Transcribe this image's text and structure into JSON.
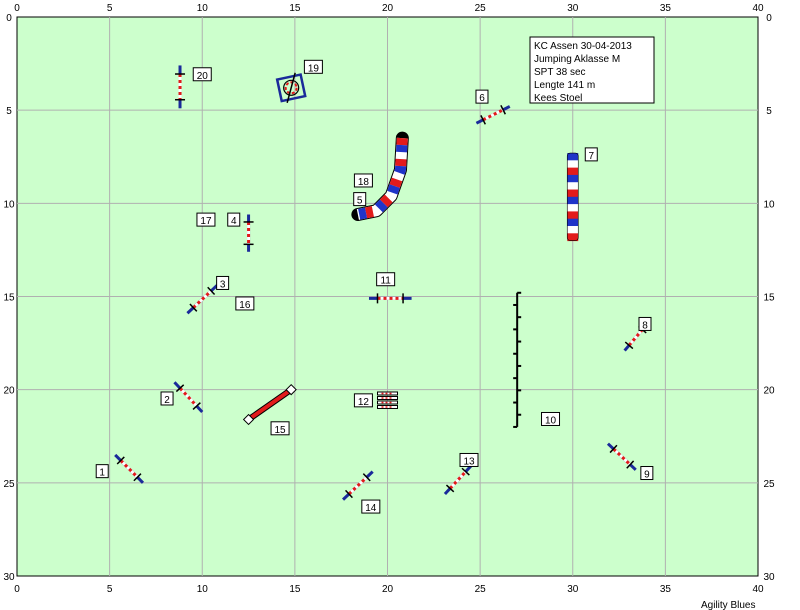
{
  "info_box": {
    "lines": [
      "KC Assen 30-04-2013",
      "Jumping Aklasse M",
      "SPT 38 sec",
      "Lengte 141 m",
      "Kees Stoel"
    ]
  },
  "footer": {
    "brand": "Agility Blues"
  },
  "axes": {
    "x_ticks": [
      0,
      5,
      10,
      15,
      20,
      25,
      30,
      35,
      40
    ],
    "y_ticks": [
      0,
      5,
      10,
      15,
      20,
      25,
      30
    ],
    "xlim": [
      0,
      40
    ],
    "ylim": [
      0,
      30
    ],
    "grid": true
  },
  "colors": {
    "field": "#ccffcc",
    "grid": "#b0b0b0",
    "pole_blue": "#1a2a9a",
    "tunnel_red": "#e21b1b",
    "tunnel_blue": "#1f34c8",
    "jump_red": "#e21b1b"
  },
  "obstacles": {
    "jumps": [
      {
        "a": [
          5.3,
          23.5
        ],
        "b": [
          6.8,
          25.0
        ]
      },
      {
        "a": [
          8.5,
          19.6
        ],
        "b": [
          10.0,
          21.2
        ]
      },
      {
        "a": [
          9.2,
          15.9
        ],
        "b": [
          10.8,
          14.4
        ]
      },
      {
        "a": [
          12.5,
          10.6
        ],
        "b": [
          12.5,
          12.6
        ]
      },
      {
        "a": [
          24.8,
          5.7
        ],
        "b": [
          26.6,
          4.8
        ]
      },
      {
        "a": [
          32.8,
          17.9
        ],
        "b": [
          34.0,
          16.5
        ]
      },
      {
        "a": [
          31.9,
          22.9
        ],
        "b": [
          33.4,
          24.3
        ]
      },
      {
        "a": [
          19.0,
          15.1
        ],
        "b": [
          21.3,
          15.1
        ]
      },
      {
        "a": [
          23.1,
          25.6
        ],
        "b": [
          24.5,
          24.1
        ]
      },
      {
        "a": [
          17.6,
          25.9
        ],
        "b": [
          19.2,
          24.4
        ]
      },
      {
        "a": [
          8.8,
          2.6
        ],
        "b": [
          8.8,
          4.9
        ]
      }
    ],
    "tyre": {
      "center": [
        14.8,
        3.8
      ]
    },
    "slalom": {
      "x": 27.0,
      "y_start": 14.8,
      "y_end": 22.0,
      "poles": 12
    },
    "long_jump": {
      "center": [
        20.0,
        20.5
      ]
    },
    "seesaw": {
      "a": [
        12.5,
        21.6
      ],
      "b": [
        14.8,
        20.0
      ]
    },
    "straight_tunnel": {
      "x": 30.0,
      "y_start": 7.3,
      "y_end": 12.0
    },
    "curved_tunnel": {
      "points": [
        [
          20.8,
          6.5
        ],
        [
          20.7,
          8.2
        ],
        [
          20.2,
          9.6
        ],
        [
          19.4,
          10.4
        ],
        [
          18.4,
          10.6
        ]
      ]
    }
  },
  "labels": [
    {
      "text": "1",
      "x": 4.6,
      "y": 24.4
    },
    {
      "text": "2",
      "x": 8.1,
      "y": 20.5
    },
    {
      "text": "3",
      "x": 11.1,
      "y": 14.3
    },
    {
      "text": "4",
      "x": 11.7,
      "y": 10.9
    },
    {
      "text": "5",
      "x": 18.5,
      "y": 9.8
    },
    {
      "text": "6",
      "x": 25.1,
      "y": 4.3
    },
    {
      "text": "7",
      "x": 31.0,
      "y": 7.4
    },
    {
      "text": "8",
      "x": 33.9,
      "y": 16.5
    },
    {
      "text": "9",
      "x": 34.0,
      "y": 24.5
    },
    {
      "text": "10",
      "x": 28.8,
      "y": 21.6
    },
    {
      "text": "11",
      "x": 19.9,
      "y": 14.1
    },
    {
      "text": "12",
      "x": 18.7,
      "y": 20.6
    },
    {
      "text": "13",
      "x": 24.4,
      "y": 23.8
    },
    {
      "text": "14",
      "x": 19.1,
      "y": 26.3
    },
    {
      "text": "15",
      "x": 14.2,
      "y": 22.1
    },
    {
      "text": "16",
      "x": 12.3,
      "y": 15.4
    },
    {
      "text": "17",
      "x": 10.2,
      "y": 10.9
    },
    {
      "text": "18",
      "x": 18.7,
      "y": 8.8
    },
    {
      "text": "19",
      "x": 16.0,
      "y": 2.7
    },
    {
      "text": "20",
      "x": 10.0,
      "y": 3.1
    }
  ]
}
